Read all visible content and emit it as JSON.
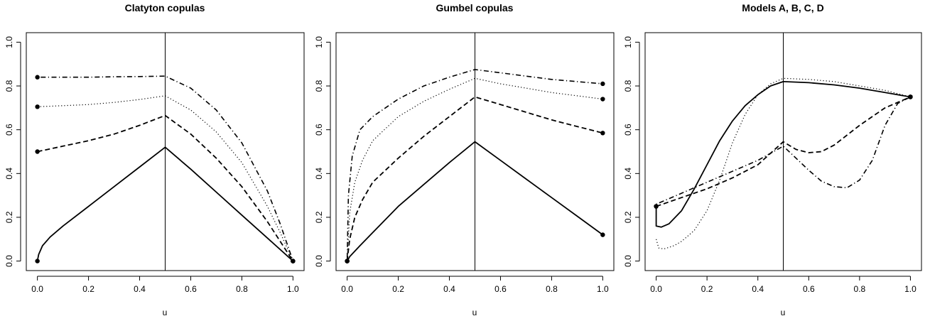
{
  "chart_data": [
    {
      "type": "line",
      "title": "Clatyton copulas",
      "xlabel": "u",
      "ylabel": "",
      "xlim": [
        0,
        1
      ],
      "ylim": [
        0,
        1
      ],
      "x_ticks": [
        "0.0",
        "0.2",
        "0.4",
        "0.6",
        "0.8",
        "1.0"
      ],
      "y_ticks": [
        "0.0",
        "0.2",
        "0.4",
        "0.6",
        "0.8",
        "1.0"
      ],
      "vline": 0.5,
      "series": [
        {
          "style": "solid",
          "points": [
            [
              0,
              0
            ],
            [
              0.005,
              0.03
            ],
            [
              0.02,
              0.07
            ],
            [
              0.05,
              0.11
            ],
            [
              0.1,
              0.16
            ],
            [
              0.2,
              0.25
            ],
            [
              0.3,
              0.34
            ],
            [
              0.4,
              0.43
            ],
            [
              0.5,
              0.52
            ],
            [
              0.6,
              0.42
            ],
            [
              0.7,
              0.315
            ],
            [
              0.8,
              0.21
            ],
            [
              0.9,
              0.105
            ],
            [
              1.0,
              0.0
            ]
          ],
          "markers": [
            [
              0,
              0
            ],
            [
              1,
              0
            ]
          ]
        },
        {
          "style": "dashed",
          "points": [
            [
              0,
              0.5
            ],
            [
              0.1,
              0.525
            ],
            [
              0.2,
              0.55
            ],
            [
              0.3,
              0.58
            ],
            [
              0.4,
              0.62
            ],
            [
              0.5,
              0.665
            ],
            [
              0.6,
              0.58
            ],
            [
              0.7,
              0.47
            ],
            [
              0.8,
              0.34
            ],
            [
              0.9,
              0.18
            ],
            [
              0.95,
              0.09
            ],
            [
              1.0,
              0.0
            ]
          ],
          "markers": [
            [
              0,
              0.5
            ],
            [
              1,
              0
            ]
          ]
        },
        {
          "style": "dotted",
          "points": [
            [
              0,
              0.705
            ],
            [
              0.1,
              0.71
            ],
            [
              0.2,
              0.715
            ],
            [
              0.3,
              0.725
            ],
            [
              0.4,
              0.738
            ],
            [
              0.5,
              0.755
            ],
            [
              0.6,
              0.69
            ],
            [
              0.7,
              0.59
            ],
            [
              0.8,
              0.45
            ],
            [
              0.9,
              0.25
            ],
            [
              0.95,
              0.13
            ],
            [
              1.0,
              0.0
            ]
          ],
          "markers": [
            [
              0,
              0.705
            ],
            [
              1,
              0
            ]
          ]
        },
        {
          "style": "dotdash",
          "points": [
            [
              0,
              0.84
            ],
            [
              0.1,
              0.84
            ],
            [
              0.2,
              0.84
            ],
            [
              0.3,
              0.842
            ],
            [
              0.4,
              0.843
            ],
            [
              0.5,
              0.845
            ],
            [
              0.6,
              0.79
            ],
            [
              0.7,
              0.69
            ],
            [
              0.8,
              0.54
            ],
            [
              0.9,
              0.32
            ],
            [
              0.95,
              0.17
            ],
            [
              1.0,
              0.0
            ]
          ],
          "markers": [
            [
              0,
              0.84
            ],
            [
              1,
              0
            ]
          ]
        }
      ]
    },
    {
      "type": "line",
      "title": "Gumbel copulas",
      "xlabel": "u",
      "ylabel": "",
      "xlim": [
        0,
        1
      ],
      "ylim": [
        0,
        1
      ],
      "x_ticks": [
        "0.0",
        "0.2",
        "0.4",
        "0.6",
        "0.8",
        "1.0"
      ],
      "y_ticks": [
        "0.0",
        "0.2",
        "0.4",
        "0.6",
        "0.8",
        "1.0"
      ],
      "vline": 0.5,
      "series": [
        {
          "style": "solid",
          "points": [
            [
              0,
              0
            ],
            [
              0.01,
              0.02
            ],
            [
              0.05,
              0.07
            ],
            [
              0.1,
              0.13
            ],
            [
              0.2,
              0.25
            ],
            [
              0.3,
              0.35
            ],
            [
              0.4,
              0.45
            ],
            [
              0.5,
              0.545
            ],
            [
              0.6,
              0.46
            ],
            [
              0.7,
              0.375
            ],
            [
              0.8,
              0.29
            ],
            [
              0.9,
              0.205
            ],
            [
              1.0,
              0.12
            ]
          ],
          "markers": [
            [
              0,
              0
            ],
            [
              1,
              0.12
            ]
          ]
        },
        {
          "style": "dashed",
          "points": [
            [
              0,
              0
            ],
            [
              0.01,
              0.1
            ],
            [
              0.03,
              0.2
            ],
            [
              0.06,
              0.28
            ],
            [
              0.1,
              0.36
            ],
            [
              0.2,
              0.47
            ],
            [
              0.3,
              0.57
            ],
            [
              0.4,
              0.66
            ],
            [
              0.5,
              0.75
            ],
            [
              0.6,
              0.715
            ],
            [
              0.7,
              0.68
            ],
            [
              0.8,
              0.645
            ],
            [
              0.9,
              0.615
            ],
            [
              1.0,
              0.585
            ]
          ],
          "markers": [
            [
              0,
              0
            ],
            [
              1,
              0.585
            ]
          ]
        },
        {
          "style": "dotted",
          "points": [
            [
              0,
              0
            ],
            [
              0.01,
              0.22
            ],
            [
              0.03,
              0.36
            ],
            [
              0.06,
              0.46
            ],
            [
              0.1,
              0.55
            ],
            [
              0.2,
              0.66
            ],
            [
              0.3,
              0.73
            ],
            [
              0.4,
              0.785
            ],
            [
              0.5,
              0.835
            ],
            [
              0.6,
              0.81
            ],
            [
              0.7,
              0.79
            ],
            [
              0.8,
              0.77
            ],
            [
              0.9,
              0.755
            ],
            [
              1.0,
              0.74
            ]
          ],
          "markers": [
            [
              0,
              0
            ],
            [
              1,
              0.74
            ]
          ]
        },
        {
          "style": "dotdash",
          "points": [
            [
              0,
              0
            ],
            [
              0.005,
              0.3
            ],
            [
              0.02,
              0.48
            ],
            [
              0.05,
              0.6
            ],
            [
              0.1,
              0.66
            ],
            [
              0.2,
              0.74
            ],
            [
              0.3,
              0.8
            ],
            [
              0.4,
              0.84
            ],
            [
              0.5,
              0.875
            ],
            [
              0.6,
              0.86
            ],
            [
              0.7,
              0.845
            ],
            [
              0.8,
              0.83
            ],
            [
              0.9,
              0.82
            ],
            [
              1.0,
              0.81
            ]
          ],
          "markers": [
            [
              0,
              0
            ],
            [
              1,
              0.81
            ]
          ]
        }
      ]
    },
    {
      "type": "line",
      "title": "Models A, B, C, D",
      "xlabel": "u",
      "ylabel": "",
      "xlim": [
        0,
        1
      ],
      "ylim": [
        0,
        1
      ],
      "x_ticks": [
        "0.0",
        "0.2",
        "0.4",
        "0.6",
        "0.8",
        "1.0"
      ],
      "y_ticks": [
        "0.0",
        "0.2",
        "0.4",
        "0.6",
        "0.8",
        "1.0"
      ],
      "vline": 0.5,
      "series": [
        {
          "style": "solid",
          "points": [
            [
              0,
              0.25
            ],
            [
              0.0,
              0.16
            ],
            [
              0.02,
              0.155
            ],
            [
              0.05,
              0.17
            ],
            [
              0.1,
              0.23
            ],
            [
              0.15,
              0.33
            ],
            [
              0.2,
              0.44
            ],
            [
              0.25,
              0.55
            ],
            [
              0.3,
              0.64
            ],
            [
              0.35,
              0.71
            ],
            [
              0.4,
              0.76
            ],
            [
              0.45,
              0.8
            ],
            [
              0.5,
              0.82
            ],
            [
              0.6,
              0.815
            ],
            [
              0.7,
              0.805
            ],
            [
              0.8,
              0.79
            ],
            [
              0.9,
              0.77
            ],
            [
              1.0,
              0.75
            ]
          ],
          "markers": [
            [
              0,
              0.25
            ],
            [
              1,
              0.75
            ]
          ]
        },
        {
          "style": "dashed",
          "points": [
            [
              0,
              0.25
            ],
            [
              0.1,
              0.29
            ],
            [
              0.2,
              0.33
            ],
            [
              0.3,
              0.38
            ],
            [
              0.4,
              0.44
            ],
            [
              0.5,
              0.545
            ],
            [
              0.55,
              0.51
            ],
            [
              0.6,
              0.495
            ],
            [
              0.65,
              0.5
            ],
            [
              0.7,
              0.53
            ],
            [
              0.8,
              0.62
            ],
            [
              0.9,
              0.7
            ],
            [
              1.0,
              0.75
            ]
          ],
          "markers": [
            [
              0,
              0.25
            ],
            [
              1,
              0.75
            ]
          ]
        },
        {
          "style": "dotted",
          "points": [
            [
              0,
              0.1
            ],
            [
              0.01,
              0.06
            ],
            [
              0.03,
              0.055
            ],
            [
              0.07,
              0.07
            ],
            [
              0.1,
              0.09
            ],
            [
              0.15,
              0.14
            ],
            [
              0.2,
              0.23
            ],
            [
              0.25,
              0.37
            ],
            [
              0.3,
              0.54
            ],
            [
              0.35,
              0.67
            ],
            [
              0.4,
              0.76
            ],
            [
              0.45,
              0.81
            ],
            [
              0.5,
              0.835
            ],
            [
              0.6,
              0.83
            ],
            [
              0.7,
              0.82
            ],
            [
              0.8,
              0.8
            ],
            [
              0.9,
              0.78
            ],
            [
              1.0,
              0.75
            ]
          ],
          "markers": [
            [
              1,
              0.75
            ]
          ]
        },
        {
          "style": "dotdash",
          "points": [
            [
              0,
              0.26
            ],
            [
              0.1,
              0.31
            ],
            [
              0.2,
              0.36
            ],
            [
              0.3,
              0.41
            ],
            [
              0.4,
              0.46
            ],
            [
              0.5,
              0.525
            ],
            [
              0.55,
              0.47
            ],
            [
              0.6,
              0.415
            ],
            [
              0.65,
              0.365
            ],
            [
              0.7,
              0.34
            ],
            [
              0.75,
              0.335
            ],
            [
              0.8,
              0.37
            ],
            [
              0.85,
              0.46
            ],
            [
              0.9,
              0.62
            ],
            [
              0.95,
              0.72
            ],
            [
              1.0,
              0.75
            ]
          ],
          "markers": [
            [
              1,
              0.75
            ]
          ]
        }
      ]
    }
  ]
}
